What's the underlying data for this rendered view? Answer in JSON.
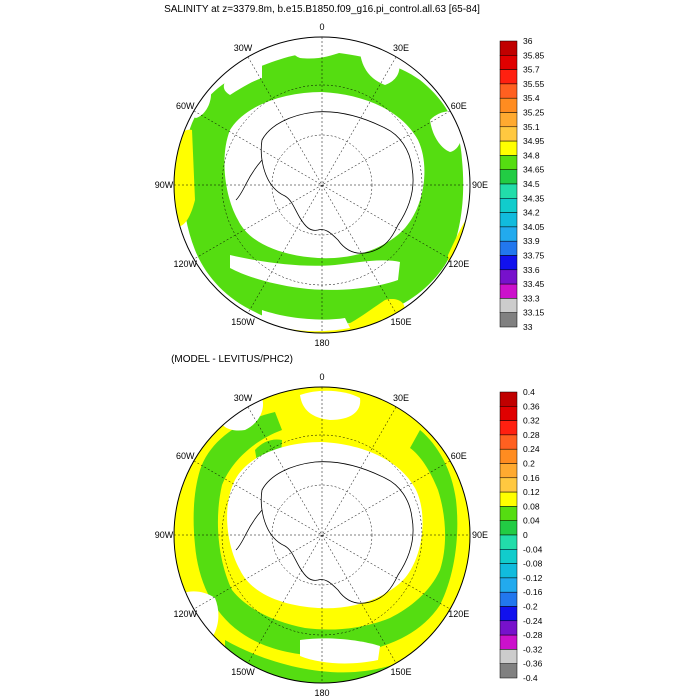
{
  "panels": [
    {
      "title": "SALINITY at z=3379.8m, b.e15.B1850.f09_g16.pi_control.all.63 [65-84]",
      "lon_labels": [
        "0",
        "30E",
        "60E",
        "90E",
        "120E",
        "150E",
        "180",
        "150W",
        "120W",
        "90W",
        "60W",
        "30W"
      ],
      "colorbar": {
        "labels": [
          "36",
          "35.85",
          "35.7",
          "35.55",
          "35.4",
          "35.25",
          "35.1",
          "34.95",
          "34.8",
          "34.65",
          "34.5",
          "34.35",
          "34.2",
          "34.05",
          "33.9",
          "33.75",
          "33.6",
          "33.45",
          "33.3",
          "33.15",
          "33"
        ],
        "colors": [
          "#c00000",
          "#e00000",
          "#ff2010",
          "#ff6020",
          "#ff8c20",
          "#ffaa30",
          "#ffc840",
          "#ffff00",
          "#55dd11",
          "#22cc44",
          "#22ddaa",
          "#11cccc",
          "#11bbdd",
          "#22aaee",
          "#2277ee",
          "#1111ee",
          "#7711cc",
          "#cc11cc",
          "#cccccc",
          "#808080"
        ]
      },
      "fill_main": "#55dd11",
      "fill_accent": "#ffff00"
    },
    {
      "title": "(MODEL - LEVITUS/PHC2)",
      "lon_labels": [
        "0",
        "30E",
        "60E",
        "90E",
        "120E",
        "150E",
        "180",
        "150W",
        "120W",
        "90W",
        "60W",
        "30W"
      ],
      "colorbar": {
        "labels": [
          "0.4",
          "0.36",
          "0.32",
          "0.28",
          "0.24",
          "0.2",
          "0.16",
          "0.12",
          "0.08",
          "0.04",
          "0",
          "-0.04",
          "-0.08",
          "-0.12",
          "-0.16",
          "-0.2",
          "-0.24",
          "-0.28",
          "-0.32",
          "-0.36",
          "-0.4"
        ],
        "colors": [
          "#c00000",
          "#e00000",
          "#ff2010",
          "#ff6020",
          "#ff8c20",
          "#ffaa30",
          "#ffc840",
          "#ffff00",
          "#55dd11",
          "#22cc44",
          "#22ddaa",
          "#11cccc",
          "#11bbdd",
          "#22aaee",
          "#2277ee",
          "#1111ee",
          "#7711cc",
          "#cc11cc",
          "#cccccc",
          "#808080"
        ]
      },
      "fill_main": "#ffff00",
      "fill_accent": "#55dd11"
    }
  ]
}
